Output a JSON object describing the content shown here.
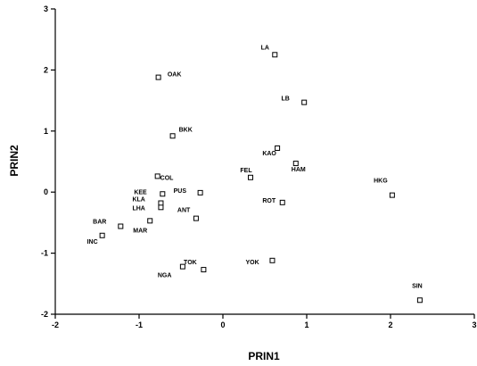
{
  "chart_data": {
    "type": "scatter",
    "title": "",
    "xlabel": "PRIN1",
    "ylabel": "PRIN2",
    "xlim": [
      -2,
      3
    ],
    "ylim": [
      -2,
      3
    ],
    "xticks": [
      "-2",
      "-1",
      "0",
      "1",
      "2",
      "3"
    ],
    "yticks": [
      "3",
      "2",
      "1",
      "0",
      "-1",
      "-2"
    ],
    "grid": false,
    "points": [
      {
        "label": "LA",
        "x": 0.62,
        "y": 2.25
      },
      {
        "label": "OAK",
        "x": -0.77,
        "y": 1.88
      },
      {
        "label": "LB",
        "x": 0.97,
        "y": 1.47
      },
      {
        "label": "BKK",
        "x": -0.6,
        "y": 0.92
      },
      {
        "label": "KAO",
        "x": 0.65,
        "y": 0.72
      },
      {
        "label": "HAM",
        "x": 0.87,
        "y": 0.47
      },
      {
        "label": "FEL",
        "x": 0.33,
        "y": 0.24
      },
      {
        "label": "COL",
        "x": -0.78,
        "y": 0.26
      },
      {
        "label": "HKG",
        "x": 2.02,
        "y": -0.05
      },
      {
        "label": "PUS",
        "x": -0.27,
        "y": -0.01
      },
      {
        "label": "KEE",
        "x": -0.72,
        "y": -0.03
      },
      {
        "label": "KLA",
        "x": -0.74,
        "y": -0.18
      },
      {
        "label": "LHA",
        "x": -0.74,
        "y": -0.25
      },
      {
        "label": "ROT",
        "x": 0.71,
        "y": -0.17
      },
      {
        "label": "ANT",
        "x": -0.32,
        "y": -0.43
      },
      {
        "label": "BAR",
        "x": -1.22,
        "y": -0.56
      },
      {
        "label": "MAR",
        "x": -0.87,
        "y": -0.47
      },
      {
        "label": "INC",
        "x": -1.44,
        "y": -0.71
      },
      {
        "label": "YOK",
        "x": 0.59,
        "y": -1.12
      },
      {
        "label": "TOK",
        "x": -0.23,
        "y": -1.27
      },
      {
        "label": "NGA",
        "x": -0.48,
        "y": -1.22
      },
      {
        "label": "SIN",
        "x": 2.35,
        "y": -1.77
      }
    ]
  }
}
